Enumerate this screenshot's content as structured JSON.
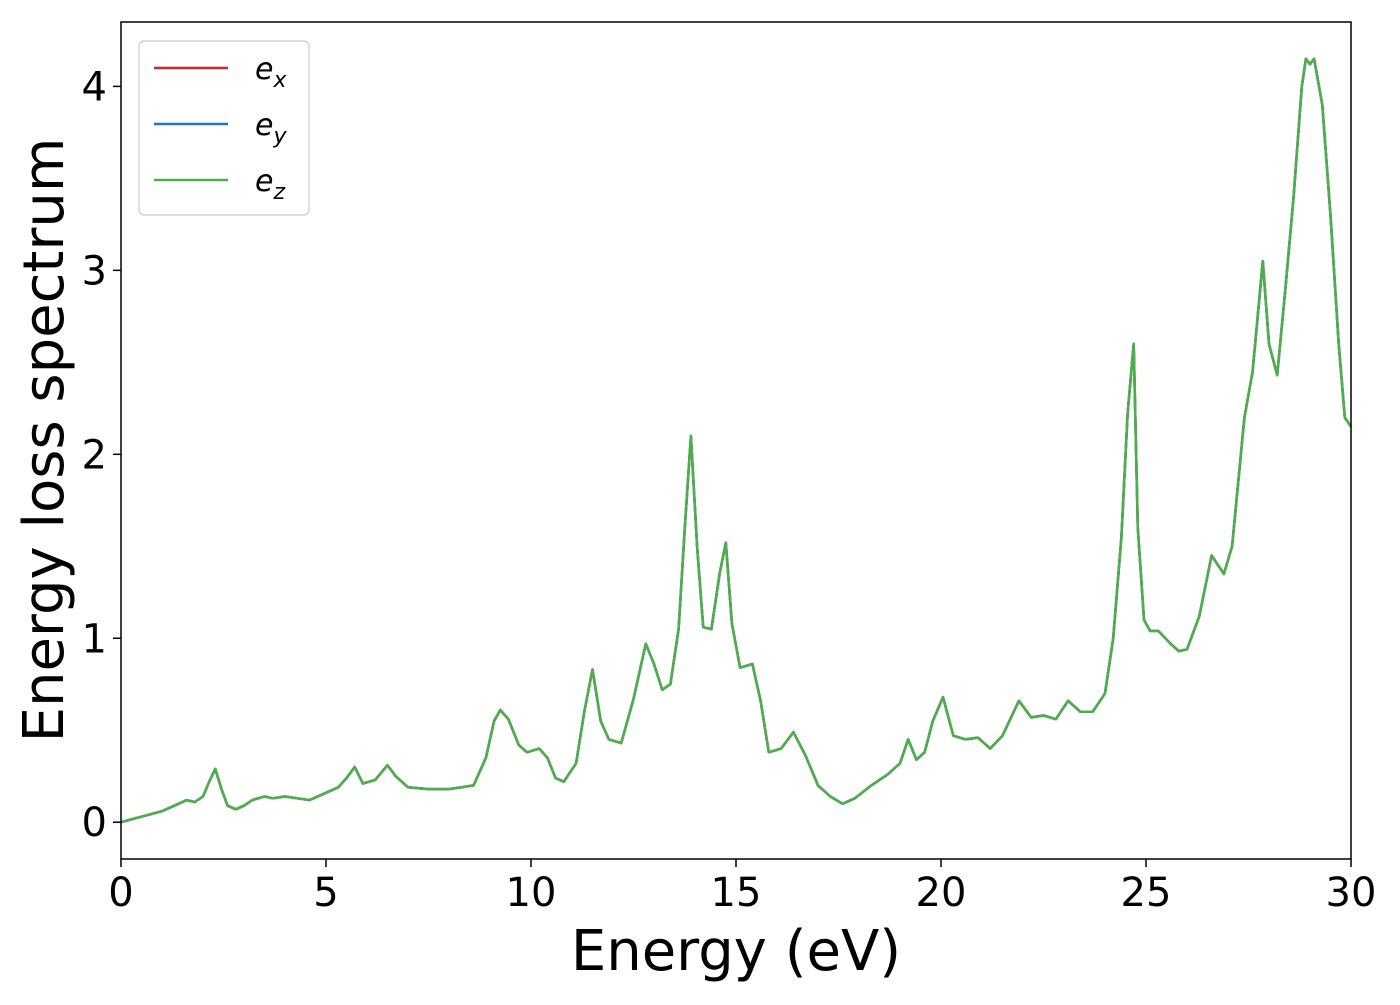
{
  "chart_data": {
    "type": "line",
    "xlabel": "Energy (eV)",
    "ylabel": "Energy loss spectrum",
    "xlim": [
      0,
      30
    ],
    "ylim": [
      -0.2,
      4.35
    ],
    "xticks": [
      0,
      5,
      10,
      15,
      20,
      25,
      30
    ],
    "yticks": [
      0,
      1,
      2,
      3,
      4
    ],
    "grid": false,
    "legend_position": "upper-left",
    "series": [
      {
        "name": "e",
        "subscript": "x",
        "color": "#d62728"
      },
      {
        "name": "e",
        "subscript": "y",
        "color": "#1f77b4"
      },
      {
        "name": "e",
        "subscript": "z",
        "color": "#4daf4a"
      }
    ],
    "x": [
      0,
      0.5,
      1.0,
      1.3,
      1.6,
      1.8,
      2.0,
      2.15,
      2.3,
      2.45,
      2.6,
      2.8,
      3.0,
      3.2,
      3.5,
      3.7,
      4.0,
      4.3,
      4.6,
      5.0,
      5.3,
      5.5,
      5.7,
      5.9,
      6.2,
      6.5,
      6.7,
      7.0,
      7.5,
      8.0,
      8.3,
      8.6,
      8.9,
      9.1,
      9.25,
      9.45,
      9.7,
      9.9,
      10.2,
      10.4,
      10.6,
      10.8,
      11.1,
      11.3,
      11.5,
      11.7,
      11.9,
      12.2,
      12.5,
      12.8,
      13.0,
      13.2,
      13.4,
      13.6,
      13.75,
      13.9,
      14.05,
      14.2,
      14.4,
      14.6,
      14.75,
      14.9,
      15.1,
      15.4,
      15.6,
      15.8,
      16.1,
      16.4,
      16.7,
      17.0,
      17.3,
      17.6,
      17.9,
      18.3,
      18.7,
      19.0,
      19.2,
      19.4,
      19.6,
      19.8,
      20.05,
      20.3,
      20.6,
      20.9,
      21.2,
      21.5,
      21.9,
      22.2,
      22.5,
      22.8,
      23.1,
      23.4,
      23.7,
      24.0,
      24.2,
      24.4,
      24.55,
      24.7,
      24.8,
      24.95,
      25.1,
      25.3,
      25.6,
      25.8,
      26.0,
      26.3,
      26.6,
      26.9,
      27.1,
      27.4,
      27.6,
      27.85,
      28.0,
      28.2,
      28.4,
      28.6,
      28.8,
      28.9,
      29.0,
      29.1,
      29.3,
      29.5,
      29.7,
      29.85,
      30.0
    ],
    "y": [
      0,
      0.03,
      0.06,
      0.09,
      0.12,
      0.11,
      0.14,
      0.22,
      0.29,
      0.18,
      0.09,
      0.07,
      0.09,
      0.12,
      0.14,
      0.13,
      0.14,
      0.13,
      0.12,
      0.16,
      0.19,
      0.24,
      0.3,
      0.21,
      0.23,
      0.31,
      0.25,
      0.19,
      0.18,
      0.18,
      0.19,
      0.2,
      0.35,
      0.55,
      0.61,
      0.56,
      0.42,
      0.38,
      0.4,
      0.35,
      0.24,
      0.22,
      0.32,
      0.6,
      0.83,
      0.55,
      0.45,
      0.43,
      0.67,
      0.97,
      0.86,
      0.72,
      0.75,
      1.05,
      1.6,
      2.1,
      1.5,
      1.06,
      1.05,
      1.35,
      1.52,
      1.08,
      0.84,
      0.86,
      0.66,
      0.38,
      0.4,
      0.49,
      0.36,
      0.2,
      0.14,
      0.1,
      0.13,
      0.2,
      0.26,
      0.32,
      0.45,
      0.34,
      0.38,
      0.55,
      0.68,
      0.47,
      0.45,
      0.46,
      0.4,
      0.47,
      0.66,
      0.57,
      0.58,
      0.56,
      0.66,
      0.6,
      0.6,
      0.7,
      1.0,
      1.55,
      2.22,
      2.6,
      1.6,
      1.1,
      1.04,
      1.04,
      0.97,
      0.93,
      0.94,
      1.12,
      1.45,
      1.35,
      1.5,
      2.2,
      2.45,
      3.05,
      2.6,
      2.43,
      2.9,
      3.4,
      4.0,
      4.15,
      4.12,
      4.15,
      3.9,
      3.3,
      2.6,
      2.2,
      2.15
    ]
  }
}
